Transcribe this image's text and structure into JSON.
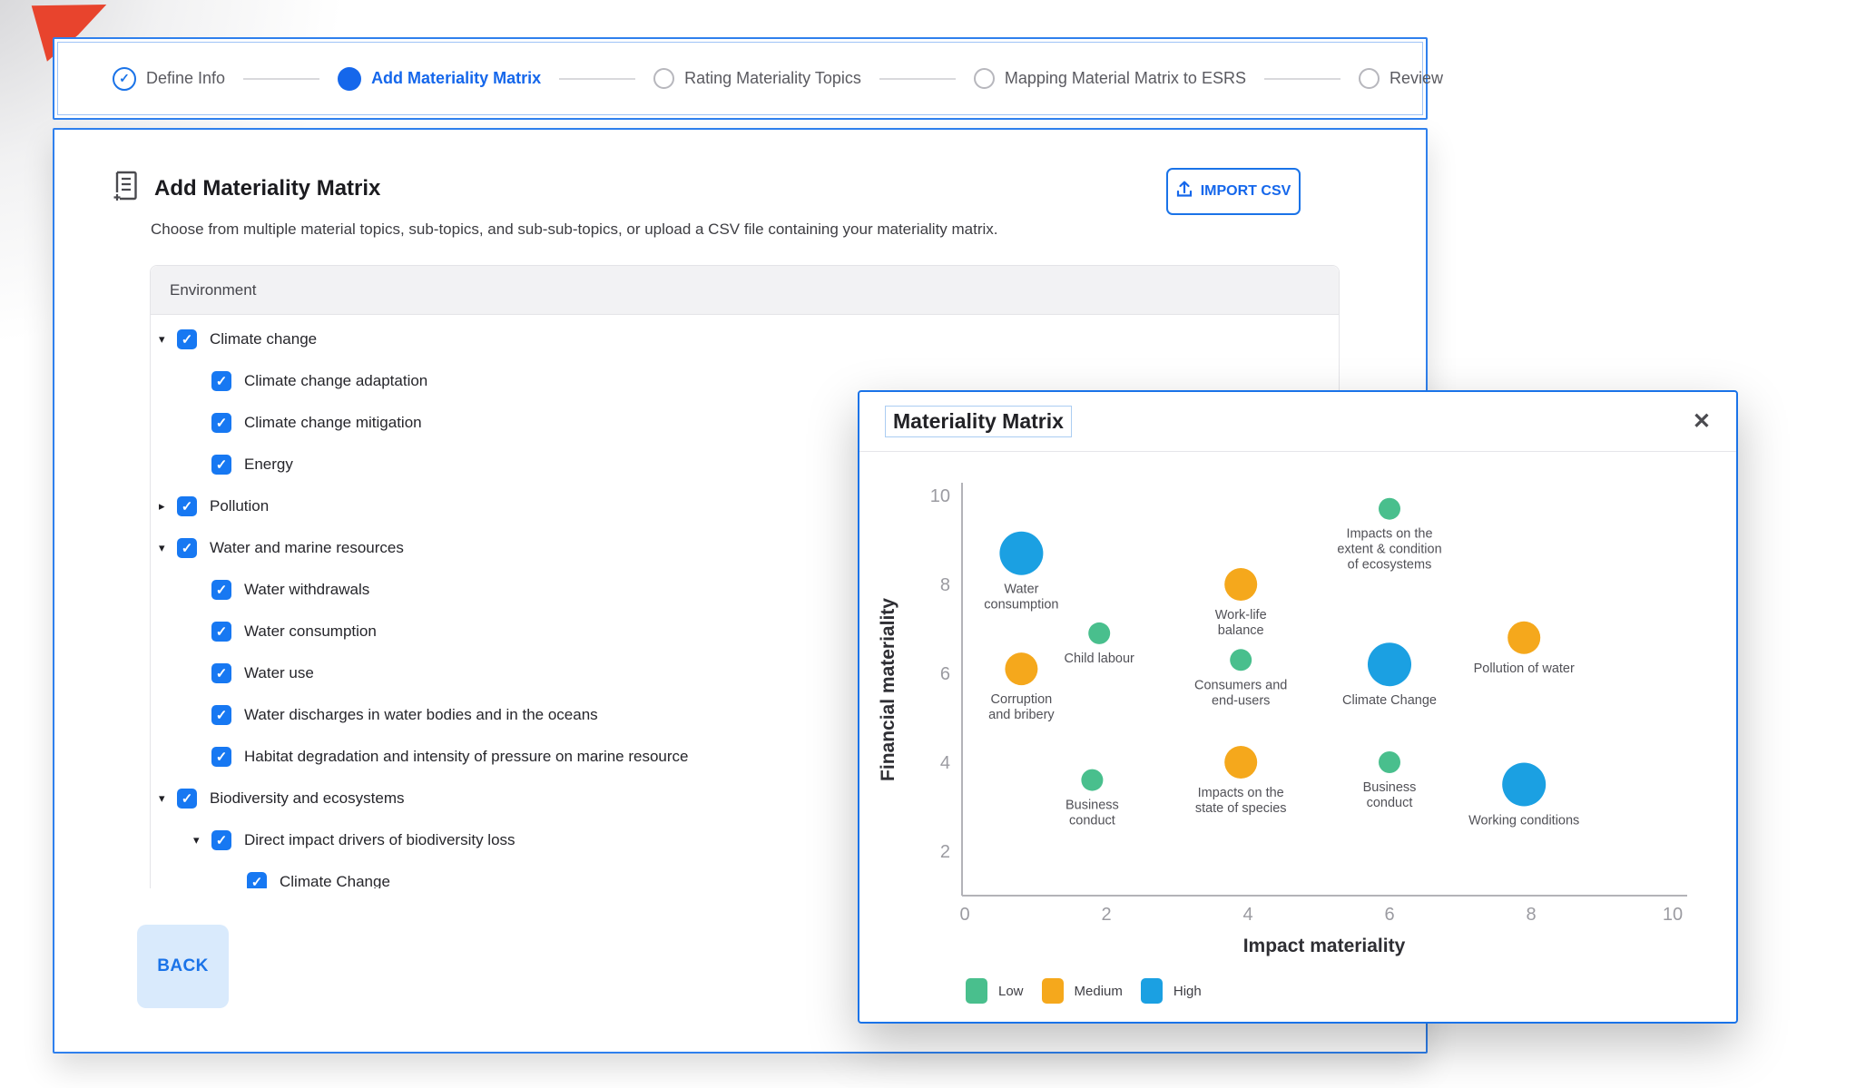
{
  "page": {
    "red_marker_color": "#e8442d"
  },
  "stepper": {
    "steps": [
      {
        "label": "Define Info",
        "state": "completed"
      },
      {
        "label": "Add Materiality Matrix",
        "state": "active"
      },
      {
        "label": "Rating Materiality Topics",
        "state": "upcoming"
      },
      {
        "label": "Mapping Material Matrix to ESRS",
        "state": "upcoming"
      },
      {
        "label": "Review",
        "state": "upcoming"
      }
    ]
  },
  "main": {
    "title": "Add Materiality Matrix",
    "import_button_label": "IMPORT CSV",
    "description": "Choose from multiple material topics, sub-topics, and sub-sub-topics, or upload a CSV file containing your materiality matrix.",
    "section_header": "Environment",
    "back_button_label": "BACK",
    "tree": [
      {
        "level": 0,
        "caret": "down",
        "checked": true,
        "label": "Climate change"
      },
      {
        "level": 1,
        "caret": null,
        "checked": true,
        "label": "Climate change adaptation"
      },
      {
        "level": 1,
        "caret": null,
        "checked": true,
        "label": "Climate change mitigation"
      },
      {
        "level": 1,
        "caret": null,
        "checked": true,
        "label": "Energy"
      },
      {
        "level": 0,
        "caret": "right",
        "checked": true,
        "label": "Pollution"
      },
      {
        "level": 0,
        "caret": "down",
        "checked": true,
        "label": "Water and marine resources"
      },
      {
        "level": 1,
        "caret": null,
        "checked": true,
        "label": "Water withdrawals"
      },
      {
        "level": 1,
        "caret": null,
        "checked": true,
        "label": "Water consumption"
      },
      {
        "level": 1,
        "caret": null,
        "checked": true,
        "label": "Water use"
      },
      {
        "level": 1,
        "caret": null,
        "checked": true,
        "label": "Water discharges in water bodies and in the oceans"
      },
      {
        "level": 1,
        "caret": null,
        "checked": true,
        "label": "Habitat degradation and intensity of pressure on marine resource"
      },
      {
        "level": 0,
        "caret": "down",
        "checked": true,
        "label": "Biodiversity and ecosystems"
      },
      {
        "level": 1,
        "caret": "down",
        "checked": true,
        "label": "Direct impact drivers of biodiversity loss"
      },
      {
        "level": 2,
        "caret": null,
        "checked": true,
        "label": "Climate Change"
      }
    ]
  },
  "modal": {
    "title": "Materiality Matrix",
    "close_icon": "✕"
  },
  "chart_data": {
    "type": "scatter",
    "title": "Materiality Matrix",
    "xlabel": "Impact materiality",
    "ylabel": "Financial materiality",
    "xlim": [
      0,
      10
    ],
    "ylim": [
      0,
      10
    ],
    "x_ticks": [
      0,
      2,
      4,
      6,
      8,
      10
    ],
    "y_ticks": [
      2,
      4,
      6,
      8,
      10
    ],
    "grid": false,
    "legend_position": "bottom-left",
    "legend": [
      {
        "label": "Low",
        "color": "#49bf8d"
      },
      {
        "label": "Medium",
        "color": "#f5a81c"
      },
      {
        "label": "High",
        "color": "#1ba0e2"
      }
    ],
    "size_by_level": {
      "Low": 12,
      "Medium": 18,
      "High": 24
    },
    "points": [
      {
        "label": "Water consumption",
        "x": 0.8,
        "y": 8.7,
        "level": "High",
        "label_lines": [
          "Water",
          "consumption"
        ]
      },
      {
        "label": "Child labour",
        "x": 1.9,
        "y": 6.9,
        "level": "Low",
        "label_lines": [
          "Child labour"
        ]
      },
      {
        "label": "Corruption and bribery",
        "x": 0.8,
        "y": 6.1,
        "level": "Medium",
        "label_lines": [
          "Corruption",
          "and bribery"
        ]
      },
      {
        "label": "Work-life balance",
        "x": 3.9,
        "y": 8.0,
        "level": "Medium",
        "label_lines": [
          "Work-life",
          "balance"
        ]
      },
      {
        "label": "Consumers and end-users",
        "x": 3.9,
        "y": 6.3,
        "level": "Low",
        "label_lines": [
          "Consumers and",
          "end-users"
        ]
      },
      {
        "label": "Impacts on the state of species",
        "x": 3.9,
        "y": 4.0,
        "level": "Medium",
        "label_lines": [
          "Impacts on the",
          "state of species"
        ]
      },
      {
        "label": "Business conduct",
        "x": 1.8,
        "y": 3.6,
        "level": "Low",
        "label_lines": [
          "Business",
          "conduct"
        ]
      },
      {
        "label": "Impacts on the extent & condition of ecosystems",
        "x": 6.0,
        "y": 9.7,
        "level": "Low",
        "label_lines": [
          "Impacts on the",
          "extent & condition",
          "of ecosystems"
        ]
      },
      {
        "label": "Climate Change",
        "x": 6.0,
        "y": 6.2,
        "level": "High",
        "label_lines": [
          "Climate Change"
        ]
      },
      {
        "label": "Pollution of water",
        "x": 7.9,
        "y": 6.8,
        "level": "Medium",
        "label_lines": [
          "Pollution of water"
        ]
      },
      {
        "label": "Business conduct",
        "x": 6.0,
        "y": 4.0,
        "level": "Low",
        "label_lines": [
          "Business",
          "conduct"
        ]
      },
      {
        "label": "Working conditions",
        "x": 7.9,
        "y": 3.5,
        "level": "High",
        "label_lines": [
          "Working conditions"
        ]
      }
    ]
  }
}
